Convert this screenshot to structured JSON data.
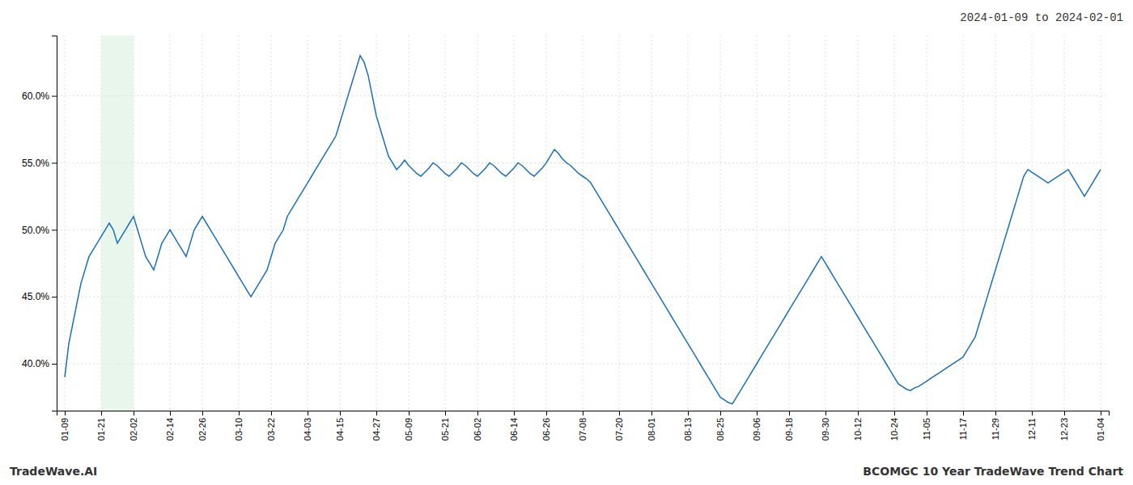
{
  "chart_data": {
    "type": "line",
    "title": "2024-01-09 to 2024-02-01",
    "annotations": [
      "TradeWave.AI",
      "BCOMGC 10 Year TradeWave Trend Chart"
    ],
    "color": "#1a6fba",
    "grid": true,
    "span": {
      "from": "01-21",
      "to": "02-02",
      "color": "#d4edda"
    },
    "ylim": [
      0.365,
      0.645
    ],
    "yticks": [
      {
        "value": 0.4,
        "label": "40.0%"
      },
      {
        "value": 0.45,
        "label": "45.0%"
      },
      {
        "value": 0.5,
        "label": "50.0%"
      },
      {
        "value": 0.55,
        "label": "55.0%"
      },
      {
        "value": 0.6,
        "label": "60.0%"
      }
    ],
    "categories": [
      "01-09",
      null,
      null,
      null,
      null,
      null,
      null,
      null,
      null,
      "01-21",
      null,
      null,
      null,
      null,
      null,
      null,
      null,
      "02-02",
      null,
      null,
      null,
      null,
      null,
      null,
      null,
      null,
      "02-14",
      null,
      null,
      null,
      null,
      null,
      null,
      null,
      "02-26",
      null,
      null,
      null,
      null,
      null,
      null,
      null,
      null,
      "03-10",
      null,
      null,
      null,
      null,
      null,
      null,
      null,
      "03-22",
      null,
      null,
      null,
      null,
      null,
      null,
      null,
      null,
      "04-03",
      null,
      null,
      null,
      null,
      null,
      null,
      null,
      "04-15",
      null,
      null,
      null,
      null,
      null,
      null,
      null,
      null,
      "04-27",
      null,
      null,
      null,
      null,
      null,
      null,
      null,
      "05-09",
      null,
      null,
      null,
      null,
      null,
      null,
      null,
      null,
      "05-21",
      null,
      null,
      null,
      null,
      null,
      null,
      null,
      "06-02",
      null,
      null,
      null,
      null,
      null,
      null,
      null,
      null,
      "06-14",
      null,
      null,
      null,
      null,
      null,
      null,
      null,
      "06-26",
      null,
      null,
      null,
      null,
      null,
      null,
      null,
      null,
      "07-08",
      null,
      null,
      null,
      null,
      null,
      null,
      null,
      null,
      "07-20",
      null,
      null,
      null,
      null,
      null,
      null,
      null,
      "08-01",
      null,
      null,
      null,
      null,
      null,
      null,
      null,
      null,
      "08-13",
      null,
      null,
      null,
      null,
      null,
      null,
      null,
      "08-25",
      null,
      null,
      null,
      null,
      null,
      null,
      null,
      null,
      "09-06",
      null,
      null,
      null,
      null,
      null,
      null,
      null,
      "09-18",
      null,
      null,
      null,
      null,
      null,
      null,
      null,
      null,
      "09-30",
      null,
      null,
      null,
      null,
      null,
      null,
      null,
      "10-12",
      null,
      null,
      null,
      null,
      null,
      null,
      null,
      null,
      "10-24",
      null,
      null,
      null,
      null,
      null,
      null,
      null,
      "11-05",
      null,
      null,
      null,
      null,
      null,
      null,
      null,
      null,
      "11-17",
      null,
      null,
      null,
      null,
      null,
      null,
      null,
      "11-29",
      null,
      null,
      null,
      null,
      null,
      null,
      null,
      null,
      "12-11",
      null,
      null,
      null,
      null,
      null,
      null,
      null,
      "12-23",
      null,
      null,
      null,
      null,
      null,
      null,
      null,
      null,
      "01-04"
    ],
    "values": [
      0.39,
      0.415,
      0.43,
      0.445,
      0.46,
      0.47,
      0.48,
      0.485,
      0.49,
      0.495,
      0.5,
      0.505,
      0.5,
      0.49,
      0.495,
      0.5,
      0.505,
      0.51,
      0.5,
      0.49,
      0.48,
      0.475,
      0.47,
      0.48,
      0.49,
      0.495,
      0.5,
      0.495,
      0.49,
      0.485,
      0.48,
      0.49,
      0.5,
      0.505,
      0.51,
      0.505,
      0.5,
      0.495,
      0.49,
      0.485,
      0.48,
      0.475,
      0.47,
      0.465,
      0.46,
      0.455,
      0.45,
      0.455,
      0.46,
      0.465,
      0.47,
      0.48,
      0.49,
      0.495,
      0.5,
      0.51,
      0.515,
      0.52,
      0.525,
      0.53,
      0.535,
      0.54,
      0.545,
      0.55,
      0.555,
      0.56,
      0.565,
      0.57,
      0.58,
      0.59,
      0.6,
      0.61,
      0.62,
      0.63,
      0.625,
      0.615,
      0.6,
      0.585,
      0.575,
      0.565,
      0.555,
      0.55,
      0.545,
      0.548,
      0.552,
      0.548,
      0.545,
      0.542,
      0.54,
      0.543,
      0.546,
      0.55,
      0.548,
      0.545,
      0.542,
      0.54,
      0.543,
      0.546,
      0.55,
      0.548,
      0.545,
      0.542,
      0.54,
      0.543,
      0.546,
      0.55,
      0.548,
      0.545,
      0.542,
      0.54,
      0.543,
      0.546,
      0.55,
      0.548,
      0.545,
      0.542,
      0.54,
      0.543,
      0.546,
      0.55,
      0.555,
      0.56,
      0.557,
      0.553,
      0.55,
      0.548,
      0.545,
      0.542,
      0.54,
      0.538,
      0.535,
      0.53,
      0.525,
      0.52,
      0.515,
      0.51,
      0.505,
      0.5,
      0.495,
      0.49,
      0.485,
      0.48,
      0.475,
      0.47,
      0.465,
      0.46,
      0.455,
      0.45,
      0.445,
      0.44,
      0.435,
      0.43,
      0.425,
      0.42,
      0.415,
      0.41,
      0.405,
      0.4,
      0.395,
      0.39,
      0.385,
      0.38,
      0.375,
      0.373,
      0.371,
      0.37,
      0.375,
      0.38,
      0.385,
      0.39,
      0.395,
      0.4,
      0.405,
      0.41,
      0.415,
      0.42,
      0.425,
      0.43,
      0.435,
      0.44,
      0.445,
      0.45,
      0.455,
      0.46,
      0.465,
      0.47,
      0.475,
      0.48,
      0.475,
      0.47,
      0.465,
      0.46,
      0.455,
      0.45,
      0.445,
      0.44,
      0.435,
      0.43,
      0.425,
      0.42,
      0.415,
      0.41,
      0.405,
      0.4,
      0.395,
      0.39,
      0.385,
      0.383,
      0.381,
      0.38,
      0.382,
      0.383,
      0.385,
      0.387,
      0.389,
      0.391,
      0.393,
      0.395,
      0.397,
      0.399,
      0.401,
      0.403,
      0.405,
      0.41,
      0.415,
      0.42,
      0.43,
      0.44,
      0.45,
      0.46,
      0.47,
      0.48,
      0.49,
      0.5,
      0.51,
      0.52,
      0.53,
      0.54,
      0.545,
      0.543,
      0.541,
      0.539,
      0.537,
      0.535,
      0.537,
      0.539,
      0.541,
      0.543,
      0.545,
      0.54,
      0.535,
      0.53,
      0.525,
      0.53,
      0.535,
      0.54,
      0.545
    ]
  }
}
